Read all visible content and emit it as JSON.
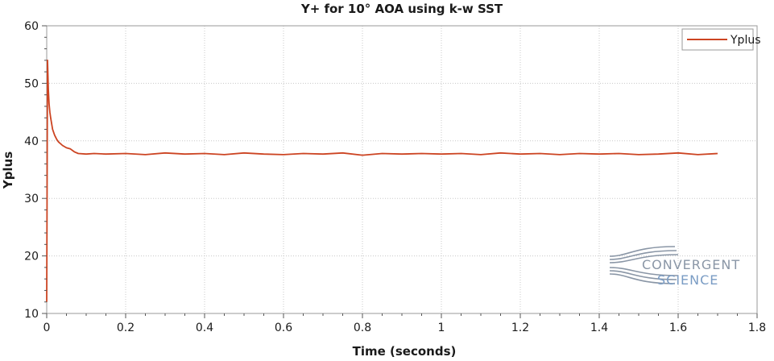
{
  "colors": {
    "series": "#cc4422",
    "grid": "#c8c8c8",
    "frame": "#9a9a9a",
    "logo_convergent": "#8a96a6",
    "logo_science": "#7a9cc4"
  },
  "logo": {
    "line1": "CONVERGENT",
    "line2": "SCIENCE"
  },
  "chart_data": {
    "type": "line",
    "title": "Y+ for 10° AOA using k-w SST",
    "xlabel": "Time (seconds)",
    "ylabel": "Yplus",
    "xlim": [
      0,
      1.8
    ],
    "ylim": [
      10,
      60
    ],
    "xticks": [
      "0",
      "0.2",
      "0.4",
      "0.6",
      "0.8",
      "1",
      "1.2",
      "1.4",
      "1.6",
      "1.8"
    ],
    "yticks": [
      "10",
      "20",
      "30",
      "40",
      "50",
      "60"
    ],
    "grid": true,
    "legend": "top-right",
    "series": [
      {
        "name": "Yplus",
        "x": [
          0,
          0.002,
          0.004,
          0.006,
          0.008,
          0.01,
          0.015,
          0.02,
          0.025,
          0.03,
          0.04,
          0.05,
          0.06,
          0.07,
          0.08,
          0.1,
          0.12,
          0.15,
          0.2,
          0.25,
          0.3,
          0.35,
          0.4,
          0.45,
          0.5,
          0.55,
          0.6,
          0.65,
          0.7,
          0.75,
          0.8,
          0.85,
          0.9,
          0.95,
          1.0,
          1.05,
          1.1,
          1.15,
          1.2,
          1.25,
          1.3,
          1.35,
          1.4,
          1.45,
          1.5,
          1.55,
          1.6,
          1.65,
          1.7
        ],
        "values": [
          12,
          54,
          49,
          46.5,
          45,
          44,
          42,
          41,
          40.3,
          39.8,
          39.2,
          38.8,
          38.6,
          38.1,
          37.8,
          37.7,
          37.8,
          37.7,
          37.8,
          37.6,
          37.9,
          37.7,
          37.8,
          37.6,
          37.9,
          37.7,
          37.6,
          37.8,
          37.7,
          37.9,
          37.5,
          37.8,
          37.7,
          37.8,
          37.7,
          37.8,
          37.6,
          37.9,
          37.7,
          37.8,
          37.6,
          37.8,
          37.7,
          37.8,
          37.6,
          37.7,
          37.9,
          37.6,
          37.8
        ]
      }
    ]
  }
}
